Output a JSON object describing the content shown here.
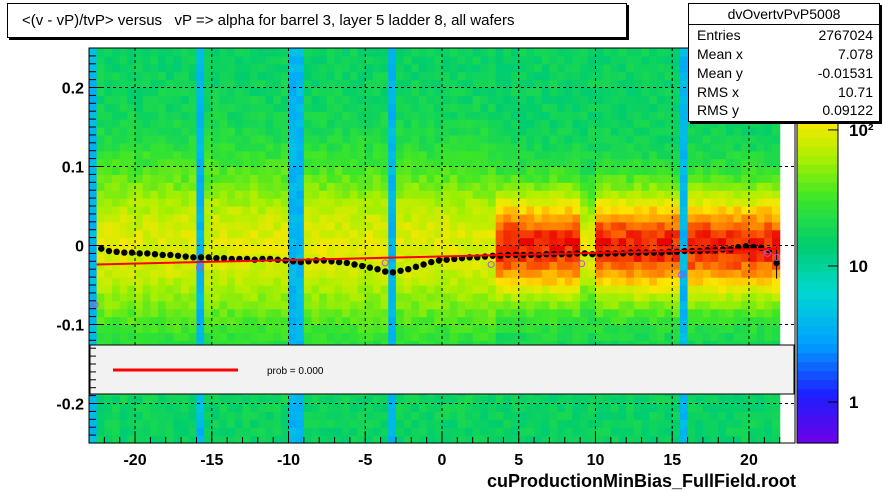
{
  "title": "<(v - vP)/tvP> versus   vP => alpha for barrel 3, layer 5 ladder 8, all wafers",
  "stats": {
    "name": "dvOvertvPvP5008",
    "rows": [
      {
        "label": "Entries",
        "value": "2767024"
      },
      {
        "label": "Mean x",
        "value": "7.078"
      },
      {
        "label": "Mean y",
        "value": "-0.01531"
      },
      {
        "label": "RMS x",
        "value": "10.71"
      },
      {
        "label": "RMS y",
        "value": "0.09122"
      }
    ]
  },
  "legend": {
    "fit_label": "prob = 0.000",
    "fit_color": "#ff0000"
  },
  "footer": "cuProductionMinBias_FullField.root",
  "chart_data": {
    "type": "heatmap",
    "xlim": [
      -23,
      23
    ],
    "ylim": [
      -0.25,
      0.25
    ],
    "x_ticks": [
      -20,
      -15,
      -10,
      -5,
      0,
      5,
      10,
      15,
      20
    ],
    "x_tick_labels": [
      "-20",
      "-15",
      "-10",
      "-5",
      "0",
      "5",
      "10",
      "15",
      "20"
    ],
    "y_ticks": [
      -0.2,
      -0.1,
      0,
      0.1,
      0.2
    ],
    "y_tick_labels": [
      "-0.2",
      "-0.1",
      "0",
      "0.1",
      "0.2"
    ],
    "grid": true,
    "colorbar": {
      "scale": "log",
      "range": [
        0.5,
        400
      ],
      "ticks": [
        1,
        10,
        100
      ],
      "tick_labels": [
        "1",
        "10",
        "10²"
      ]
    },
    "profile_points": {
      "x": [
        -22.2,
        -21.7,
        -21.2,
        -20.7,
        -20.2,
        -19.7,
        -19.2,
        -18.7,
        -18.2,
        -17.7,
        -17.2,
        -16.7,
        -16.2,
        -15.7,
        -15.2,
        -14.7,
        -14.2,
        -13.7,
        -13.2,
        -12.7,
        -12.2,
        -11.7,
        -11.2,
        -10.7,
        -10.2,
        -9.7,
        -9.2,
        -8.7,
        -8.2,
        -7.7,
        -7.2,
        -6.7,
        -6.2,
        -5.7,
        -5.2,
        -4.7,
        -4.2,
        -3.7,
        -3.2,
        -2.7,
        -2.2,
        -1.7,
        -1.2,
        -0.7,
        -0.2,
        0.3,
        0.8,
        1.3,
        1.8,
        2.3,
        2.8,
        3.3,
        3.8,
        4.3,
        4.8,
        5.3,
        5.8,
        6.3,
        6.8,
        7.3,
        7.8,
        8.3,
        8.8,
        9.3,
        9.8,
        10.3,
        10.8,
        11.3,
        11.8,
        12.3,
        12.8,
        13.3,
        13.8,
        14.3,
        14.8,
        15.3,
        15.8,
        16.3,
        16.8,
        17.3,
        17.8,
        18.3,
        18.8,
        19.3,
        19.8,
        20.3,
        20.8,
        21.3,
        21.8
      ],
      "y": [
        -0.004,
        -0.007,
        -0.008,
        -0.009,
        -0.009,
        -0.01,
        -0.01,
        -0.011,
        -0.012,
        -0.012,
        -0.013,
        -0.014,
        -0.015,
        -0.015,
        -0.015,
        -0.016,
        -0.016,
        -0.017,
        -0.017,
        -0.017,
        -0.018,
        -0.017,
        -0.017,
        -0.018,
        -0.019,
        -0.02,
        -0.021,
        -0.02,
        -0.019,
        -0.019,
        -0.02,
        -0.021,
        -0.022,
        -0.024,
        -0.026,
        -0.028,
        -0.03,
        -0.033,
        -0.034,
        -0.032,
        -0.03,
        -0.027,
        -0.024,
        -0.021,
        -0.019,
        -0.018,
        -0.017,
        -0.016,
        -0.015,
        -0.015,
        -0.014,
        -0.013,
        -0.013,
        -0.012,
        -0.012,
        -0.012,
        -0.012,
        -0.012,
        -0.011,
        -0.011,
        -0.011,
        -0.011,
        -0.01,
        -0.01,
        -0.011,
        -0.011,
        -0.01,
        -0.01,
        -0.01,
        -0.009,
        -0.009,
        -0.009,
        -0.009,
        -0.009,
        -0.008,
        -0.008,
        -0.007,
        -0.007,
        -0.007,
        -0.006,
        -0.006,
        -0.005,
        -0.005,
        -0.002,
        -0.001,
        -0.002,
        -0.003,
        -0.006,
        -0.022
      ],
      "err_y": [
        0.004,
        0.003,
        0.003,
        0.003,
        0.003,
        0.003,
        0.003,
        0.003,
        0.003,
        0.003,
        0.003,
        0.003,
        0.003,
        0.003,
        0.003,
        0.003,
        0.003,
        0.003,
        0.003,
        0.003,
        0.003,
        0.003,
        0.003,
        0.003,
        0.003,
        0.003,
        0.003,
        0.003,
        0.003,
        0.003,
        0.003,
        0.003,
        0.003,
        0.003,
        0.003,
        0.003,
        0.003,
        0.003,
        0.003,
        0.003,
        0.003,
        0.003,
        0.003,
        0.003,
        0.003,
        0.003,
        0.003,
        0.003,
        0.003,
        0.003,
        0.003,
        0.003,
        0.003,
        0.003,
        0.003,
        0.003,
        0.003,
        0.003,
        0.003,
        0.003,
        0.003,
        0.003,
        0.003,
        0.003,
        0.003,
        0.003,
        0.003,
        0.003,
        0.003,
        0.003,
        0.003,
        0.003,
        0.003,
        0.003,
        0.003,
        0.003,
        0.003,
        0.003,
        0.003,
        0.003,
        0.003,
        0.003,
        0.003,
        0.003,
        0.003,
        0.003,
        0.003,
        0.003,
        0.02
      ]
    },
    "open_markers": {
      "x": [
        -22.6,
        -15.8,
        -3.7,
        3.2,
        9.1,
        15.6,
        21.2,
        21.8
      ],
      "y": [
        -0.075,
        -0.028,
        -0.022,
        -0.024,
        -0.023,
        -0.037,
        -0.01,
        -0.015
      ]
    },
    "fit_line": {
      "x": [
        -22.5,
        22
      ],
      "y": [
        -0.024,
        -0.004
      ]
    },
    "dead_strips": [
      {
        "x0": -22.8,
        "x1": -22.4
      },
      {
        "x0": -15.9,
        "x1": -15.6
      },
      {
        "x0": -9.9,
        "x1": -9.0
      },
      {
        "x0": -3.5,
        "x1": -3.2
      },
      {
        "x0": 15.6,
        "x1": 15.9
      }
    ]
  }
}
